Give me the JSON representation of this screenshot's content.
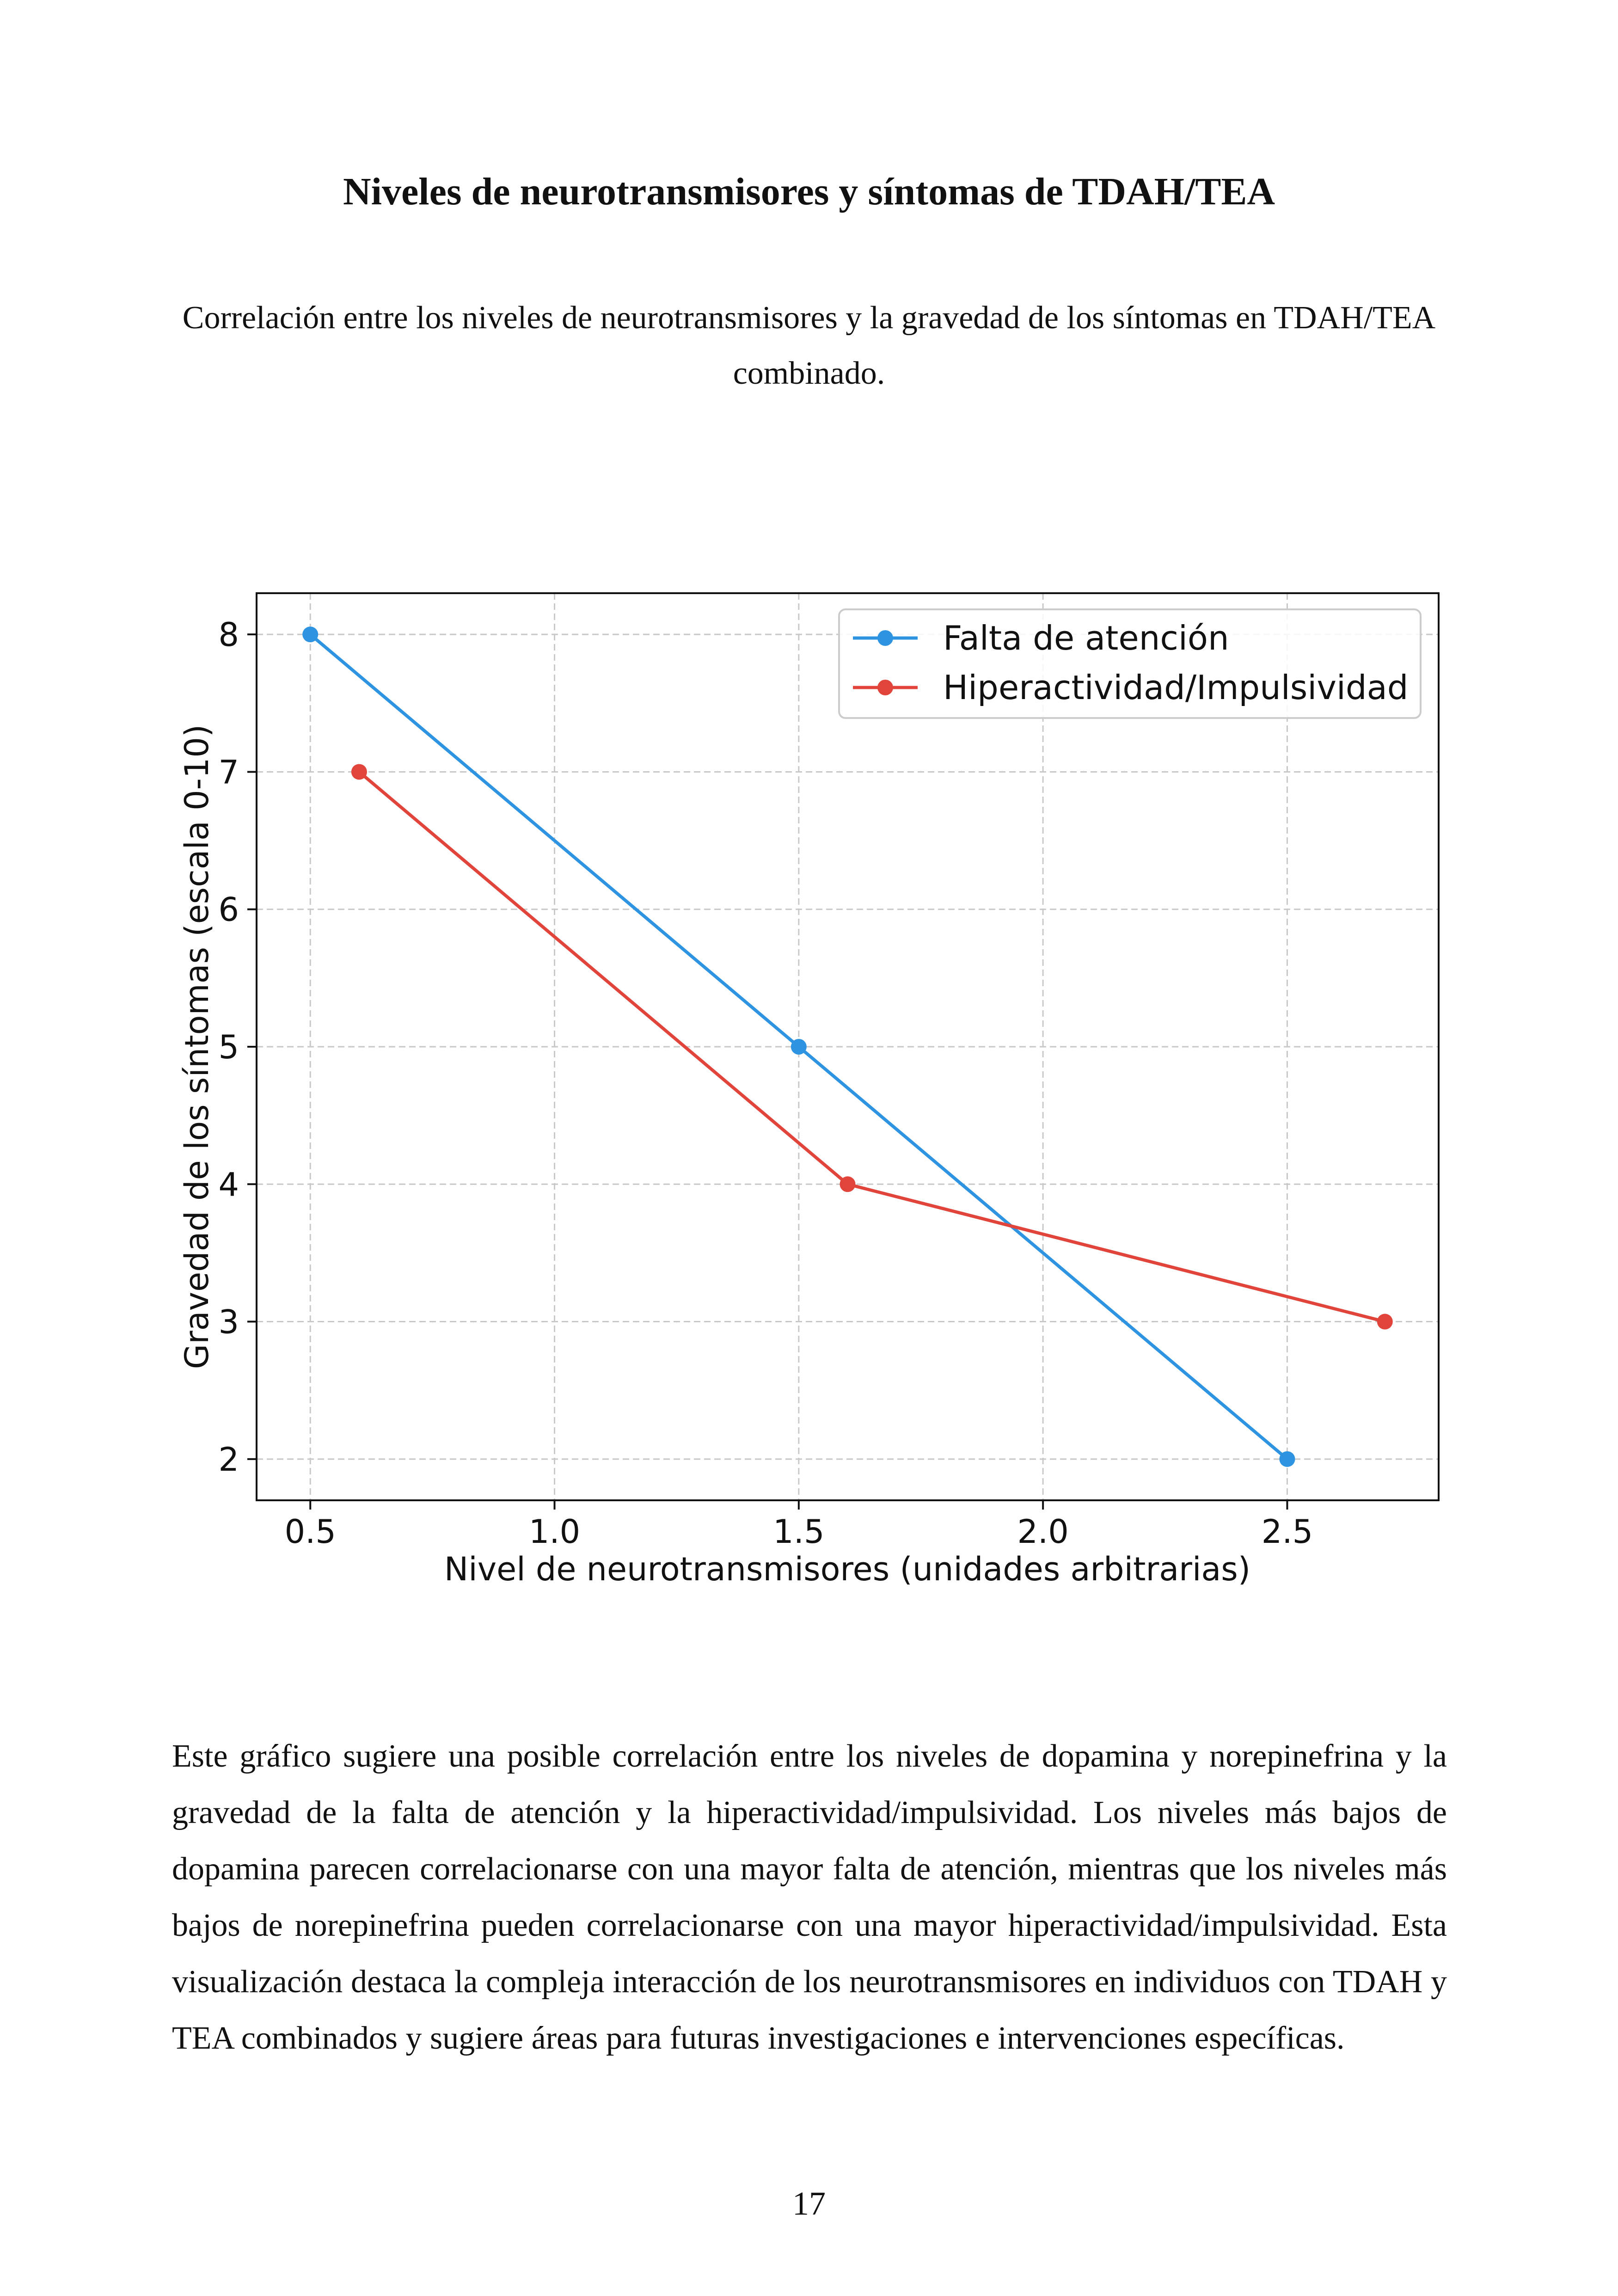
{
  "page": {
    "title": "Niveles de neurotransmisores y síntomas de TDAH/TEA",
    "subtitle": "Correlación entre los niveles de neurotransmisores y la gravedad de los síntomas en TDAH/TEA combinado.",
    "body": "Este gráfico sugiere una posible correlación entre los niveles de dopamina y norepinefrina y la gravedad de la falta de atención y la hiperactividad/impulsividad. Los niveles más bajos de dopamina parecen correlacionarse con una mayor falta de atención, mientras que los niveles más bajos de norepinefrina pueden correlacionarse con una mayor hiperactividad/impulsividad. Esta visualización destaca la compleja interacción de los neurotransmisores en individuos con TDAH y TEA combinados y sugiere áreas para futuras investigaciones e intervenciones específicas.",
    "page_number": "17"
  },
  "chart_data": {
    "type": "line",
    "title": "",
    "xlabel": "Nivel de neurotransmisores (unidades arbitrarias)",
    "ylabel": "Gravedad de los síntomas (escala 0-10)",
    "xlim": [
      0.39,
      2.81
    ],
    "ylim": [
      1.7,
      8.3
    ],
    "xticks": [
      0.5,
      1.0,
      1.5,
      2.0,
      2.5
    ],
    "xtick_labels": [
      "0.5",
      "1.0",
      "1.5",
      "2.0",
      "2.5"
    ],
    "yticks": [
      2,
      3,
      4,
      5,
      6,
      7,
      8
    ],
    "ytick_labels": [
      "2",
      "3",
      "4",
      "5",
      "6",
      "7",
      "8"
    ],
    "grid": true,
    "legend_position": "top-right",
    "series": [
      {
        "name": "Falta de atención",
        "color": "#2e93e0",
        "x": [
          0.5,
          1.5,
          2.5
        ],
        "y": [
          8,
          5,
          2
        ]
      },
      {
        "name": "Hiperactividad/Impulsividad",
        "color": "#e0443a",
        "x": [
          0.6,
          1.6,
          2.7
        ],
        "y": [
          7,
          4,
          3
        ]
      }
    ]
  }
}
